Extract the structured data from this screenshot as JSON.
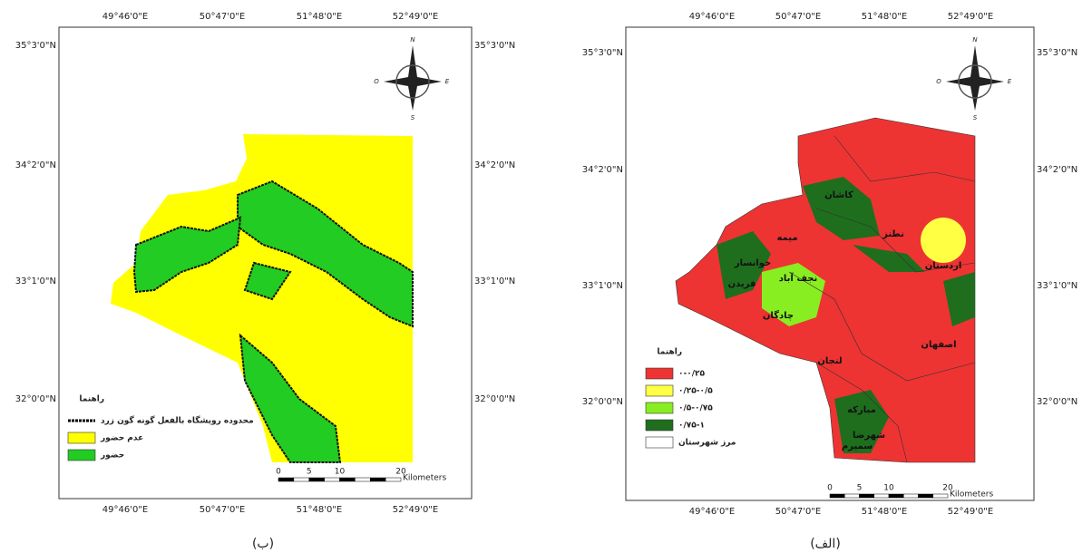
{
  "panels": [
    {
      "caption": "(ب)",
      "top_labels": [
        "49°46'0\"E",
        "50°47'0\"E",
        "51°48'0\"E",
        "52°49'0\"E"
      ],
      "bottom_labels": [
        "49°46'0\"E",
        "50°47'0\"E",
        "51°48'0\"E",
        "52°49'0\"E"
      ],
      "left_labels": [
        "35°3'0\"N",
        "34°2'0\"N",
        "33°1'0\"N",
        "32°0'0\"N"
      ],
      "right_labels": [
        "35°3'0\"N",
        "34°2'0\"N",
        "33°1'0\"N",
        "32°0'0\"N"
      ],
      "legend": {
        "title": "راهنما",
        "items": [
          "محدوده رویشگاه بالفعل گونه گون زرد",
          "عدم حضور",
          "حضور"
        ]
      },
      "scale": {
        "ticks": [
          "0",
          "5",
          "10",
          "20"
        ],
        "unit": "Kilometers"
      },
      "compass": [
        "N",
        "S",
        "O",
        "E"
      ]
    },
    {
      "caption": "(الف)",
      "top_labels": [
        "49°46'0\"E",
        "50°47'0\"E",
        "51°48'0\"E",
        "52°49'0\"E"
      ],
      "bottom_labels": [
        "49°46'0\"E",
        "50°47'0\"E",
        "51°48'0\"E",
        "52°49'0\"E"
      ],
      "left_labels": [
        "35°3'0\"N",
        "34°2'0\"N",
        "33°1'0\"N",
        "32°0'0\"N"
      ],
      "right_labels": [
        "35°3'0\"N",
        "34°2'0\"N",
        "33°1'0\"N",
        "32°0'0\"N"
      ],
      "legend": {
        "title": "راهنما",
        "items": [
          "۰-۰/۲۵",
          "۰/۲۵-۰/۵",
          "۰/۵-۰/۷۵",
          "۰/۷۵-۱",
          "مرز شهرستان"
        ]
      },
      "scale": {
        "ticks": [
          "0",
          "5",
          "10",
          "20"
        ],
        "unit": "Kilometers"
      },
      "compass": [
        "N",
        "S",
        "O",
        "E"
      ],
      "places": [
        "کاشان",
        "نطنز",
        "میمه",
        "خوانسار",
        "فریدن",
        "نجف آباد",
        "اردستان",
        "چادگان",
        "اصفهان",
        "لنجان",
        "مبارکه",
        "شهرضا",
        "سمیرم"
      ]
    }
  ]
}
